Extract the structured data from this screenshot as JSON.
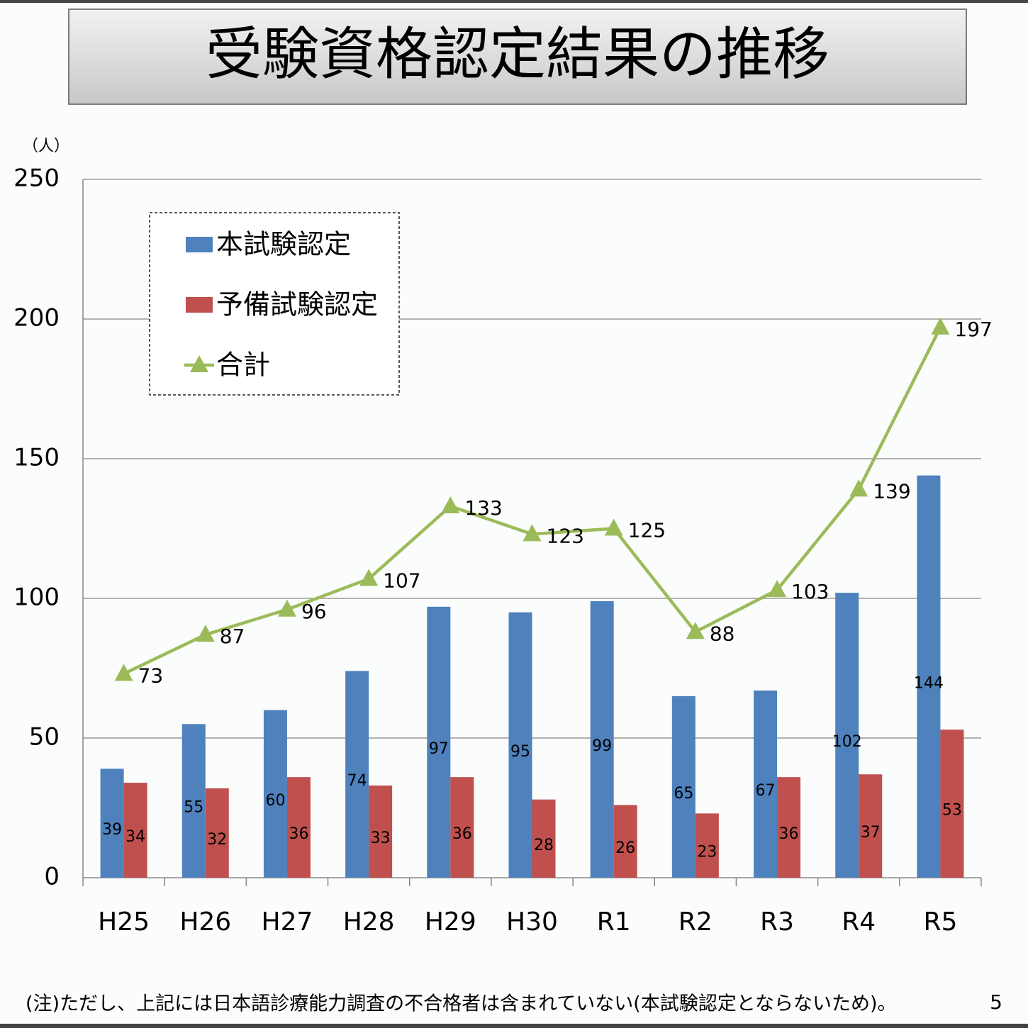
{
  "title": "受験資格認定結果の推移",
  "note": "(注)ただし、上記には日本語診療能力調査の不合格者は含まれていない(本試験認定とならないため)。",
  "page_number": "5",
  "chart_data": {
    "type": "bar",
    "y_axis_label": "（人）",
    "categories": [
      "H25",
      "H26",
      "H27",
      "H28",
      "H29",
      "H30",
      "R1",
      "R2",
      "R3",
      "R4",
      "R5"
    ],
    "series": [
      {
        "name": "本試験認定",
        "type": "bar",
        "color": "#4f81bd",
        "values": [
          39,
          55,
          60,
          74,
          97,
          95,
          99,
          65,
          67,
          102,
          144
        ]
      },
      {
        "name": "予備試験認定",
        "type": "bar",
        "color": "#c0504d",
        "values": [
          34,
          32,
          36,
          33,
          36,
          28,
          26,
          23,
          36,
          37,
          53
        ]
      },
      {
        "name": "合計",
        "type": "line",
        "color": "#9bbb59",
        "values": [
          73,
          87,
          96,
          107,
          133,
          123,
          125,
          88,
          103,
          139,
          197
        ]
      }
    ],
    "ylim": [
      0,
      250
    ],
    "yticks": [
      0,
      50,
      100,
      150,
      200,
      250
    ],
    "grid": true,
    "legend": "upper left"
  }
}
